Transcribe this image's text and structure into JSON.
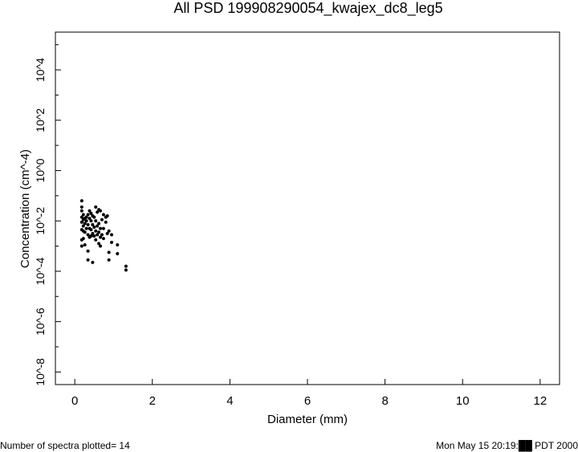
{
  "chart_data": {
    "type": "scatter",
    "title": "All PSD 199908290054_kwajex_dc8_leg5",
    "xlabel": "Diameter (mm)",
    "ylabel": "Concentration (cm^-4)",
    "xlim": [
      -0.5,
      12.5
    ],
    "ylim_log10": [
      -8.5,
      5.5
    ],
    "x_ticks": [
      0,
      2,
      4,
      6,
      8,
      10,
      12
    ],
    "y_ticks": [
      -8,
      -6,
      -4,
      -2,
      0,
      2,
      4
    ],
    "x_tick_labels": [
      "0",
      "2",
      "4",
      "6",
      "8",
      "10",
      "12"
    ],
    "y_tick_labels": [
      "10^-8",
      "10^-6",
      "10^-4",
      "10^-2",
      "10^0",
      "10^2",
      "10^4"
    ],
    "grid": false,
    "points_log10": [
      [
        0.18,
        -1.2
      ],
      [
        0.18,
        -1.45
      ],
      [
        0.18,
        -1.6
      ],
      [
        0.18,
        -1.85
      ],
      [
        0.18,
        -2.05
      ],
      [
        0.18,
        -2.35
      ],
      [
        0.18,
        -2.75
      ],
      [
        0.18,
        -3.0
      ],
      [
        0.22,
        -1.75
      ],
      [
        0.22,
        -1.95
      ],
      [
        0.22,
        -2.2
      ],
      [
        0.22,
        -2.4
      ],
      [
        0.22,
        -2.7
      ],
      [
        0.26,
        -1.9
      ],
      [
        0.26,
        -2.1
      ],
      [
        0.26,
        -2.45
      ],
      [
        0.26,
        -2.95
      ],
      [
        0.3,
        -1.85
      ],
      [
        0.3,
        -2.0
      ],
      [
        0.3,
        -2.3
      ],
      [
        0.34,
        -1.75
      ],
      [
        0.34,
        -2.15
      ],
      [
        0.34,
        -2.55
      ],
      [
        0.34,
        -3.2
      ],
      [
        0.34,
        -3.55
      ],
      [
        0.38,
        -1.6
      ],
      [
        0.38,
        -1.9
      ],
      [
        0.38,
        -2.3
      ],
      [
        0.38,
        -2.65
      ],
      [
        0.42,
        -1.7
      ],
      [
        0.42,
        -2.0
      ],
      [
        0.42,
        -2.35
      ],
      [
        0.42,
        -2.6
      ],
      [
        0.46,
        -1.8
      ],
      [
        0.46,
        -2.15
      ],
      [
        0.46,
        -2.5
      ],
      [
        0.46,
        -3.65
      ],
      [
        0.5,
        -1.85
      ],
      [
        0.5,
        -2.25
      ],
      [
        0.5,
        -2.6
      ],
      [
        0.54,
        -1.45
      ],
      [
        0.54,
        -2.0
      ],
      [
        0.54,
        -2.4
      ],
      [
        0.54,
        -2.75
      ],
      [
        0.58,
        -1.65
      ],
      [
        0.58,
        -2.2
      ],
      [
        0.58,
        -2.55
      ],
      [
        0.62,
        -1.55
      ],
      [
        0.62,
        -2.1
      ],
      [
        0.62,
        -2.45
      ],
      [
        0.62,
        -2.9
      ],
      [
        0.66,
        -1.6
      ],
      [
        0.66,
        -2.3
      ],
      [
        0.66,
        -2.65
      ],
      [
        0.66,
        -3.0
      ],
      [
        0.7,
        -1.95
      ],
      [
        0.7,
        -2.55
      ],
      [
        0.74,
        -1.75
      ],
      [
        0.74,
        -2.3
      ],
      [
        0.74,
        -2.7
      ],
      [
        0.8,
        -1.85
      ],
      [
        0.8,
        -2.05
      ],
      [
        0.84,
        -1.8
      ],
      [
        0.84,
        -2.5
      ],
      [
        0.88,
        -2.4
      ],
      [
        0.88,
        -3.25
      ],
      [
        0.88,
        -3.55
      ],
      [
        0.95,
        -2.55
      ],
      [
        0.95,
        -2.85
      ],
      [
        1.1,
        -2.95
      ],
      [
        1.1,
        -3.3
      ],
      [
        1.32,
        -3.8
      ],
      [
        1.32,
        -3.95
      ]
    ]
  },
  "footer": {
    "left": "Number of spectra plotted= 14",
    "right": "Mon May 15 20:19:██ PDT 2000"
  }
}
